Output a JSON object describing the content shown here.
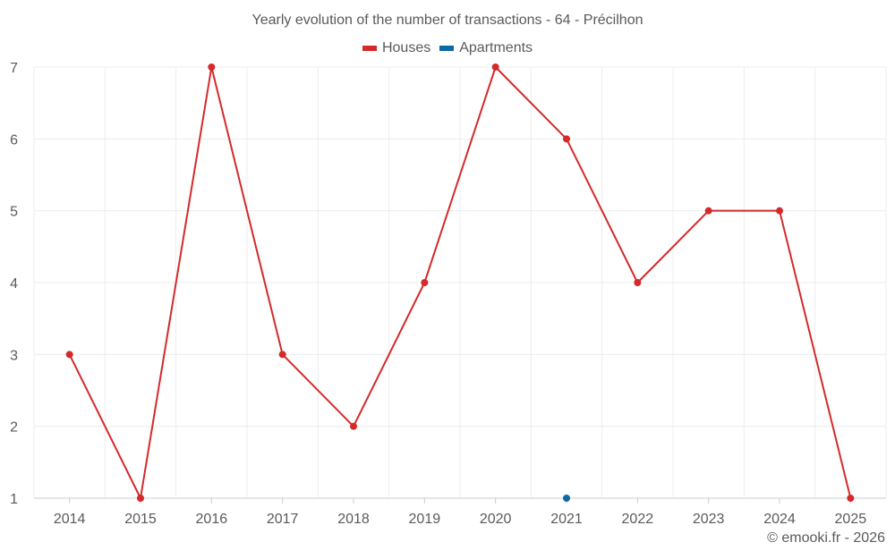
{
  "chart_data": {
    "type": "line",
    "title": "Yearly evolution of the number of transactions - 64 - Précilhon",
    "categories": [
      "2014",
      "2015",
      "2016",
      "2017",
      "2018",
      "2019",
      "2020",
      "2021",
      "2022",
      "2023",
      "2024",
      "2025"
    ],
    "series": [
      {
        "name": "Houses",
        "color": "#d42a2a",
        "values": [
          3,
          1,
          7,
          3,
          2,
          4,
          7,
          6,
          4,
          5,
          5,
          1
        ]
      },
      {
        "name": "Apartments",
        "color": "#0b6aa2",
        "values": [
          null,
          null,
          null,
          null,
          null,
          null,
          null,
          1,
          null,
          null,
          null,
          null
        ]
      }
    ],
    "ylim": [
      1,
      7
    ],
    "yticks": [
      1,
      2,
      3,
      4,
      5,
      6,
      7
    ],
    "grid": true,
    "legend_position": "top-center"
  },
  "credit": "© emooki.fr - 2026"
}
